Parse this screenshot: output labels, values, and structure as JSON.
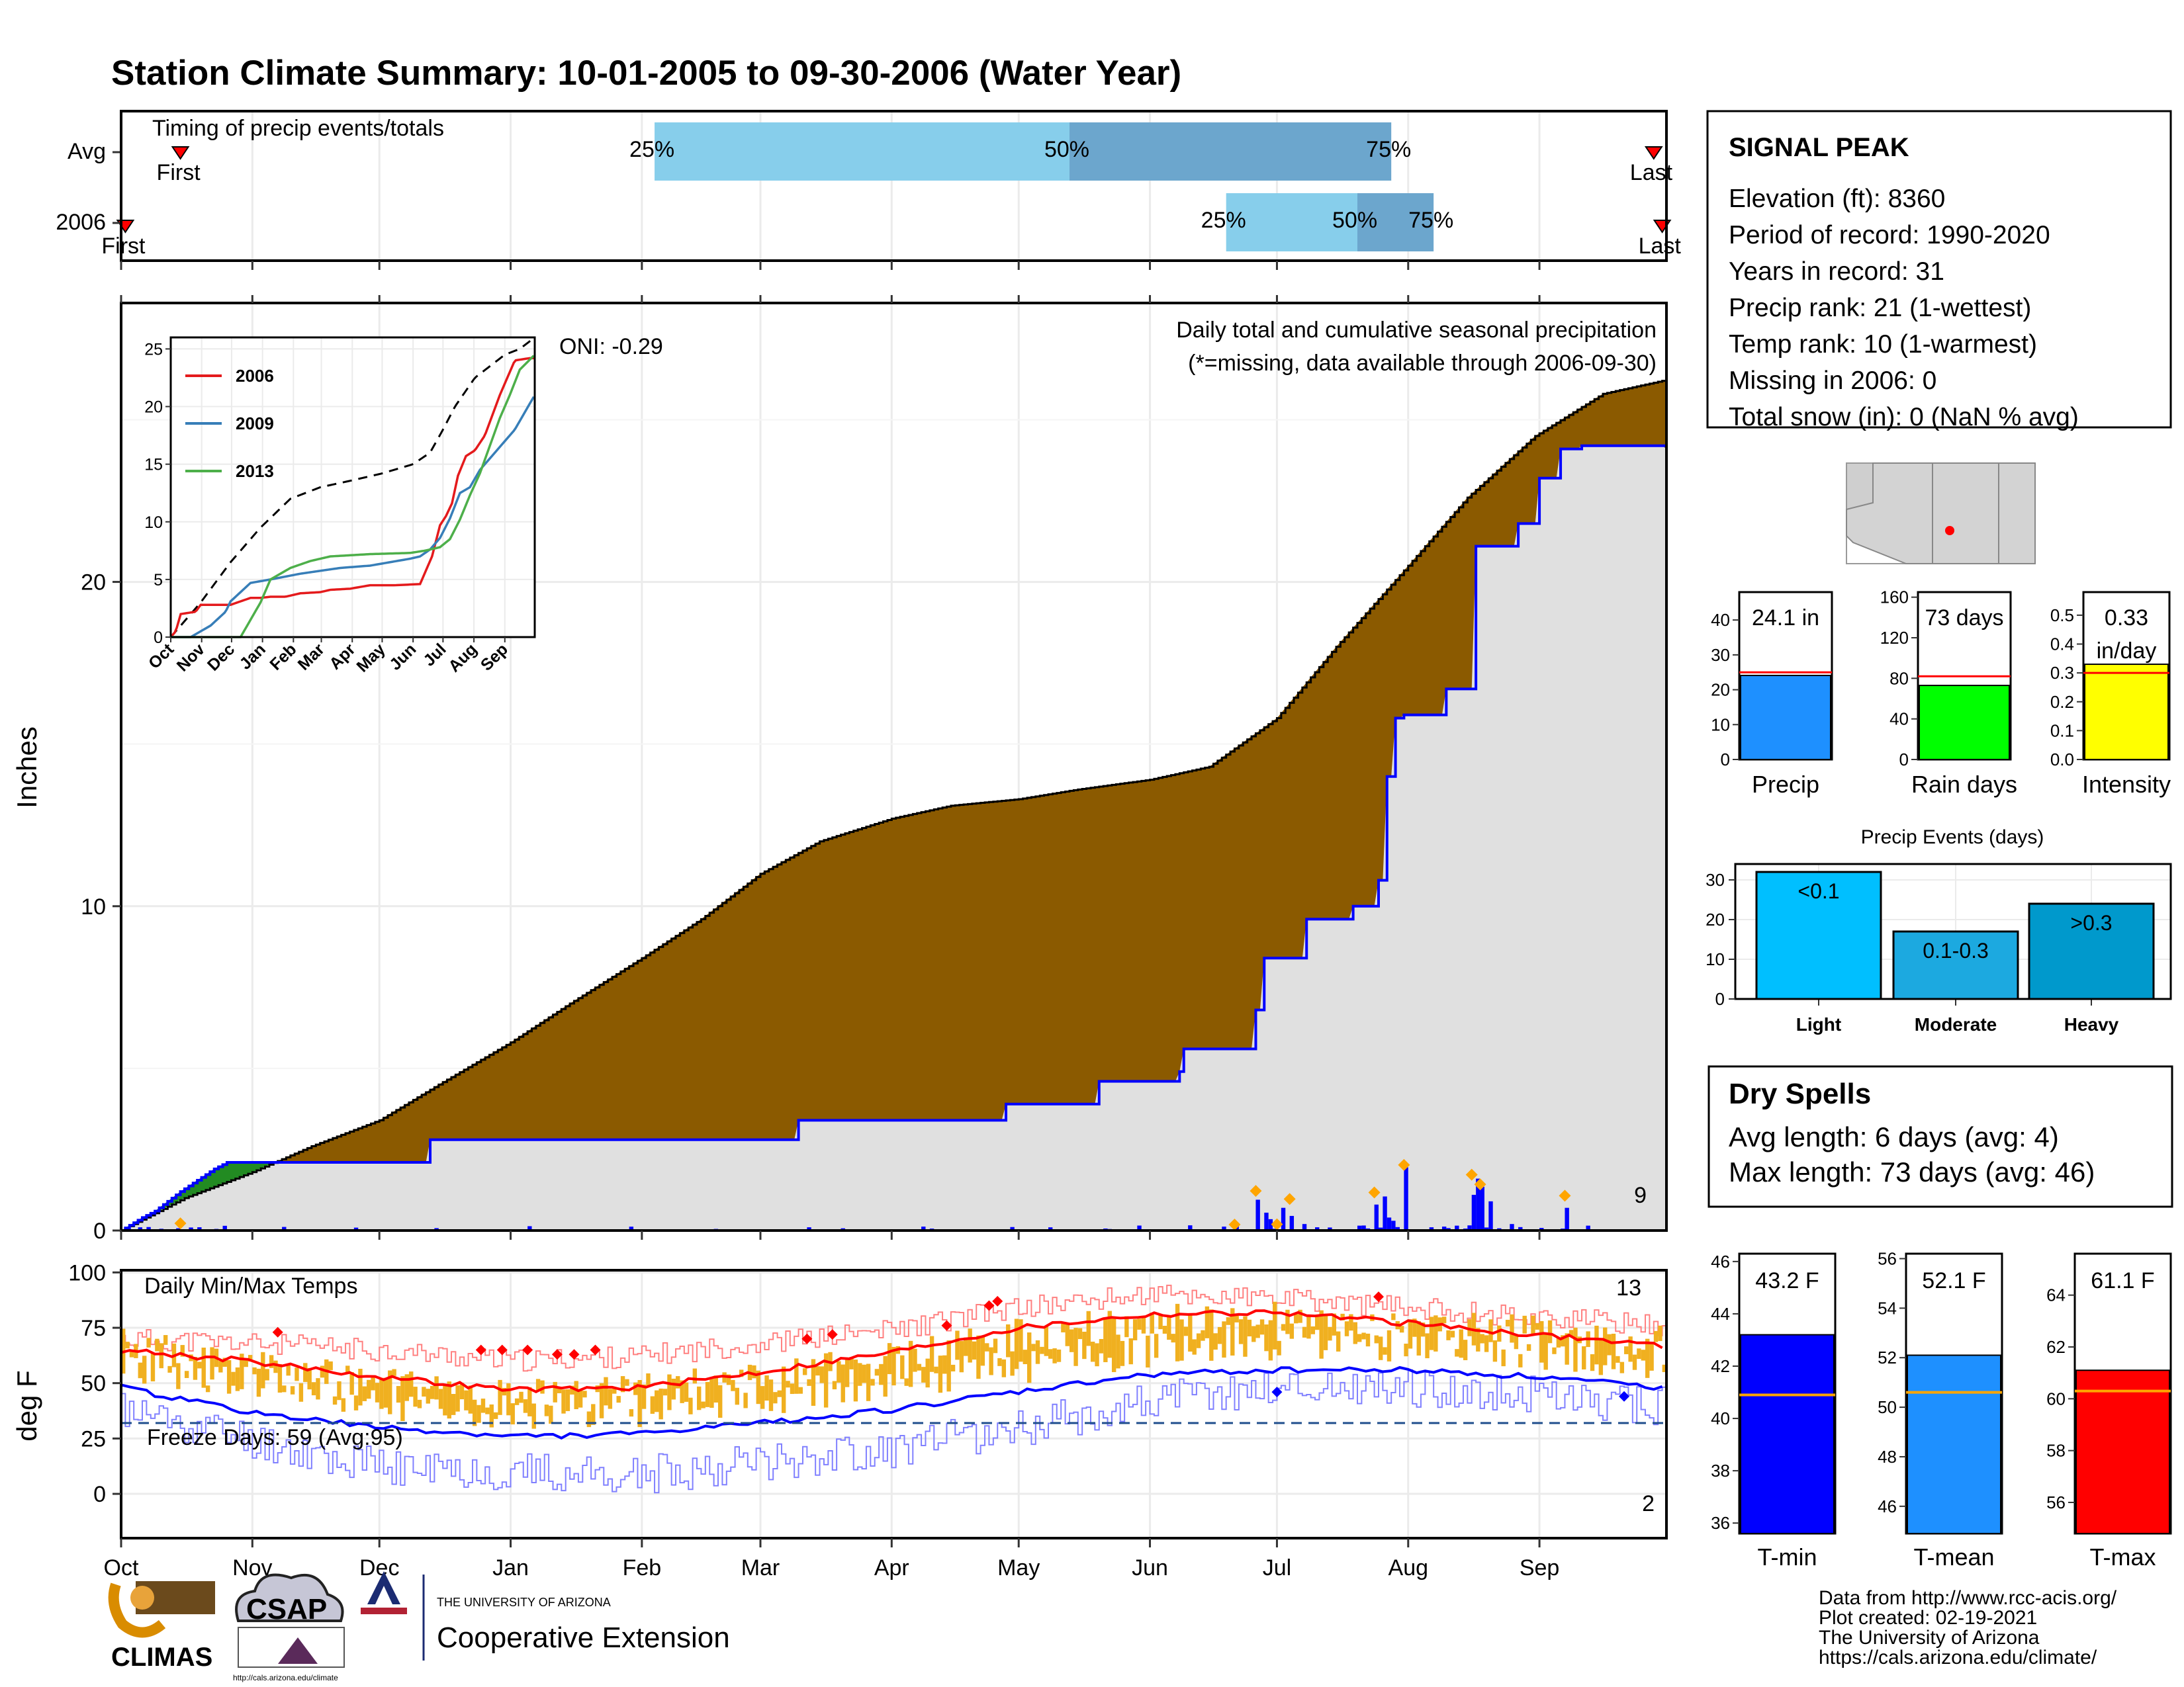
{
  "title": "Station Climate Summary: 10-01-2005 to 09-30-2006 (Water Year)",
  "months": [
    "Oct",
    "Nov",
    "Dec",
    "Jan",
    "Feb",
    "Mar",
    "Apr",
    "May",
    "Jun",
    "Jul",
    "Aug",
    "Sep"
  ],
  "colors": {
    "title": "#8B2500",
    "avg_fill": "#8B5A00",
    "above_fill": "#228B22",
    "cum_line": "#0000FF",
    "gray_fill": "#E0E0E0",
    "red": "#FF0000",
    "orange": "#FFA500",
    "gold": "#F0B020",
    "blue": "#0000FF"
  },
  "timing": {
    "label": "Timing of precip events/totals",
    "rows": [
      {
        "name": "Avg",
        "first_label": "First",
        "last_label": "Last",
        "first_day": 14,
        "last_day": 362,
        "p25": 126,
        "p50": 224,
        "p75": 300,
        "p25_label": "25%",
        "p50_label": "50%",
        "p75_label": "75%"
      },
      {
        "name": "2006",
        "first_label": "First",
        "last_label": "Last",
        "first_day": 1,
        "last_day": 364,
        "p25": 261,
        "p50": 292,
        "p75": 310,
        "p25_label": "25%",
        "p50_label": "50%",
        "p75_label": "75%"
      }
    ]
  },
  "precip": {
    "ylabel": "Inches",
    "annotation": "Daily total and cumulative seasonal precipitation",
    "missing_note": "(*=missing, data available through 2006-09-30)",
    "oni": "ONI: -0.29",
    "count_label": "9",
    "yticks": [
      0,
      10,
      20
    ]
  },
  "inset": {
    "months": [
      "Oct",
      "Nov",
      "Dec",
      "Jan",
      "Feb",
      "Mar",
      "Apr",
      "May",
      "Jun",
      "Jul",
      "Aug",
      "Sep"
    ],
    "yticks": [
      0,
      5,
      10,
      15,
      20,
      25
    ],
    "legend": [
      {
        "name": "2006",
        "color": "#E41A1C"
      },
      {
        "name": "2009",
        "color": "#377EB8"
      },
      {
        "name": "2013",
        "color": "#4DAF4A"
      }
    ]
  },
  "temp": {
    "ylabel": "deg F",
    "label": "Daily Min/Max Temps",
    "freeze_label": "Freeze Days: 59 (Avg:95)",
    "high_count": "13",
    "low_count": "2",
    "yticks": [
      0,
      25,
      50,
      75,
      100
    ],
    "freeze_line": 32
  },
  "station": {
    "name": "SIGNAL PEAK",
    "lines": [
      "Elevation (ft): 8360",
      "Period of record: 1990-2020",
      "Years in record: 31",
      "Precip rank: 21 (1-wettest)",
      "Temp rank: 10 (1-warmest)",
      "Missing in 2006: 0",
      "Total snow (in): 0 (NaN % avg)"
    ]
  },
  "mini_bars": [
    {
      "label": "Precip",
      "value": 24.1,
      "avg": 25,
      "value_label": "24.1 in",
      "value_label2": "",
      "ylim": [
        0,
        48
      ],
      "yticks": [
        0,
        10,
        20,
        30,
        40
      ],
      "color": "#1E90FF"
    },
    {
      "label": "Rain days",
      "value": 73,
      "avg": 82,
      "value_label": "73 days",
      "value_label2": "",
      "ylim": [
        0,
        165
      ],
      "yticks": [
        0,
        40,
        80,
        120,
        160
      ],
      "color": "#00FF00"
    },
    {
      "label": "Intensity",
      "value": 0.33,
      "avg": 0.3,
      "value_label": "0.33",
      "value_label2": "in/day",
      "ylim": [
        0,
        0.58
      ],
      "yticks": [
        "0.0",
        "0.1",
        "0.2",
        "0.3",
        "0.4",
        "0.5"
      ],
      "color": "#FFFF00"
    }
  ],
  "events": {
    "title": "Precip Events (days)",
    "yticks": [
      0,
      10,
      20,
      30
    ],
    "bars": [
      {
        "label": "Light",
        "value": 32,
        "text": "<0.1",
        "color": "#00BFFF"
      },
      {
        "label": "Moderate",
        "value": 17,
        "text": "0.1-0.3",
        "color": "#1CA9E0"
      },
      {
        "label": "Heavy",
        "value": 24,
        "text": ">0.3",
        "color": "#0099CC"
      }
    ]
  },
  "dry_spells": {
    "title": "Dry Spells",
    "avg_line": "Avg length: 6 days (avg: 4)",
    "max_line": "Max length: 73 days (avg: 46)"
  },
  "temp_bars": [
    {
      "label": "T-min",
      "value_label": "43.2 F",
      "value": 43.2,
      "avg": 40.9,
      "ylim": [
        35.6,
        46.3
      ],
      "yticks": [
        36,
        38,
        40,
        42,
        44,
        46
      ],
      "color": "#0000FF"
    },
    {
      "label": "T-mean",
      "value_label": "52.1 F",
      "value": 52.1,
      "avg": 50.6,
      "ylim": [
        44.9,
        56.2
      ],
      "yticks": [
        46,
        48,
        50,
        52,
        54,
        56
      ],
      "color": "#1E90FF"
    },
    {
      "label": "T-max",
      "value_label": "61.1 F",
      "value": 61.1,
      "avg": 60.3,
      "ylim": [
        54.8,
        65.6
      ],
      "yticks": [
        56,
        58,
        60,
        62,
        64
      ],
      "color": "#FF0000"
    }
  ],
  "credits": [
    "Data from http://www.rcc-acis.org/",
    "Plot created: 02-19-2021",
    "The University of Arizona",
    "https://cals.arizona.edu/climate/"
  ],
  "logos": {
    "climas": "CLIMAS",
    "csap": "CSAP",
    "csap_url": "http://cals.arizona.edu/climate",
    "ua_small": "THE UNIVERSITY OF ARIZONA",
    "ua_big": "Cooperative Extension"
  },
  "chart_data": [
    {
      "type": "area",
      "title": "Daily total and cumulative seasonal precipitation",
      "ylabel": "Inches",
      "ylim": [
        0,
        28.2
      ],
      "x_units": "day of water year (Oct 1 = 0)",
      "series": [
        {
          "name": "",
          "x": [
            0,
            15,
            31,
            45,
            61,
            75,
            92,
            106,
            123,
            137,
            151,
            165,
            182,
            196,
            212,
            226,
            243,
            257,
            273,
            287,
            304,
            318,
            334,
            350,
            364
          ],
          "values": [
            0,
            1.0,
            1.8,
            2.6,
            3.4,
            4.5,
            5.8,
            7.0,
            8.4,
            9.6,
            11.0,
            12.0,
            12.7,
            13.1,
            13.3,
            13.6,
            13.9,
            14.3,
            15.8,
            18.0,
            20.5,
            22.6,
            24.5,
            25.8,
            26.2
          ]
        },
        {
          "name": "",
          "x": [
            0,
            5,
            8,
            14,
            22,
            25,
            39,
            73,
            115,
            160,
            209,
            231,
            250,
            251,
            257,
            268,
            270,
            280,
            291,
            297,
            299,
            301,
            303,
            313,
            320,
            330,
            335,
            340,
            345,
            365
          ],
          "values": [
            0,
            0.4,
            0.6,
            1.2,
            1.9,
            2.1,
            2.1,
            2.8,
            2.8,
            3.4,
            3.9,
            4.6,
            4.9,
            5.6,
            5.6,
            6.8,
            8.4,
            9.6,
            10.0,
            10.8,
            14.0,
            15.8,
            15.9,
            16.7,
            21.1,
            21.8,
            23.2,
            24.1,
            24.2,
            24.1
          ]
        }
      ]
    },
    {
      "type": "line",
      "xlim": [
        0,
        365
      ],
      "ylim": [
        0,
        26
      ],
      "series": [
        {
          "name": "",
          "x": [
            0,
            30,
            60,
            90,
            120,
            150,
            182,
            212,
            243,
            260,
            273,
            285,
            305,
            320,
            335,
            350,
            365
          ],
          "values": [
            0,
            3,
            6.5,
            9.5,
            12,
            13,
            13.6,
            14.2,
            15,
            16,
            18,
            20,
            22.5,
            23.5,
            24.5,
            25,
            26
          ]
        },
        {
          "name": "2006",
          "x": [
            0,
            5,
            10,
            25,
            30,
            60,
            80,
            90,
            100,
            115,
            130,
            150,
            160,
            180,
            200,
            210,
            225,
            250,
            255,
            262,
            270,
            276,
            282,
            288,
            296,
            305,
            315,
            330,
            340,
            345,
            360,
            364
          ],
          "values": [
            0,
            0.5,
            2,
            2.2,
            2.8,
            2.8,
            3.4,
            3.4,
            3.5,
            3.5,
            3.8,
            3.9,
            4.1,
            4.2,
            4.5,
            4.5,
            4.5,
            4.6,
            5.6,
            7.0,
            9.7,
            10.5,
            11.6,
            14.0,
            15.7,
            16.2,
            17.5,
            21.0,
            23.0,
            24.0,
            24.2,
            24.2
          ]
        },
        {
          "name": "2009",
          "x": [
            0,
            20,
            40,
            55,
            60,
            80,
            100,
            130,
            170,
            200,
            240,
            250,
            260,
            270,
            280,
            290,
            300,
            310,
            325,
            345,
            365
          ],
          "values": [
            0,
            0,
            1.0,
            2.2,
            3.1,
            4.7,
            5.0,
            5.5,
            6.0,
            6.2,
            6.8,
            7.0,
            7.6,
            8.6,
            10.3,
            12.5,
            13.0,
            14.5,
            16.0,
            18.0,
            21.0
          ]
        },
        {
          "name": "2013",
          "x": [
            0,
            30,
            70,
            80,
            90,
            100,
            120,
            140,
            160,
            200,
            240,
            255,
            270,
            280,
            290,
            300,
            310,
            320,
            330,
            340,
            350,
            365
          ],
          "values": [
            0,
            0,
            0,
            1.5,
            3.0,
            5.0,
            6.0,
            6.6,
            7.0,
            7.2,
            7.3,
            7.5,
            7.8,
            8.5,
            10.2,
            12.3,
            14.2,
            16.6,
            19.0,
            21.0,
            23.2,
            24.5
          ]
        }
      ]
    },
    {
      "type": "line",
      "title": "Daily Min/Max Temps",
      "ylabel": "deg F",
      "ylim": [
        -15,
        100
      ],
      "series": [
        {
          "name": "",
          "x": [
            0,
            30,
            60,
            92,
            122,
            151,
            182,
            212,
            243,
            273,
            304,
            334,
            364
          ],
          "values": [
            65,
            60,
            53,
            47,
            48,
            55,
            64,
            75,
            81,
            82,
            77,
            72,
            67
          ]
        },
        {
          "name": "",
          "x": [
            0,
            30,
            60,
            92,
            122,
            151,
            182,
            212,
            243,
            273,
            304,
            334,
            364
          ],
          "values": [
            48,
            37,
            30,
            26,
            27,
            32,
            38,
            46,
            54,
            56,
            56,
            53,
            48
          ]
        },
        {
          "name": "",
          "x": [
            0,
            30,
            60,
            92,
            122,
            151,
            182,
            212,
            243,
            273,
            304,
            334,
            364
          ],
          "values": [
            70,
            68,
            65,
            60,
            62,
            68,
            74,
            84,
            90,
            88,
            84,
            80,
            76
          ]
        },
        {
          "name": "",
          "x": [
            0,
            30,
            60,
            92,
            122,
            151,
            182,
            212,
            243,
            273,
            304,
            334,
            364
          ],
          "values": [
            38,
            25,
            12,
            10,
            8,
            15,
            20,
            30,
            42,
            48,
            48,
            44,
            40
          ]
        }
      ]
    },
    {
      "type": "bar",
      "title": "Precip Events (days)",
      "categories": [
        "Light",
        "Moderate",
        "Heavy"
      ],
      "values": [
        32,
        17,
        24
      ],
      "ylim": [
        0,
        34
      ]
    },
    {
      "type": "bar",
      "categories": [
        "Precip",
        "Rain days",
        "Intensity"
      ],
      "values": [
        24.1,
        73,
        0.33
      ]
    },
    {
      "type": "bar",
      "categories": [
        "T-min",
        "T-mean",
        "T-max"
      ],
      "values": [
        43.2,
        52.1,
        61.1
      ]
    }
  ]
}
